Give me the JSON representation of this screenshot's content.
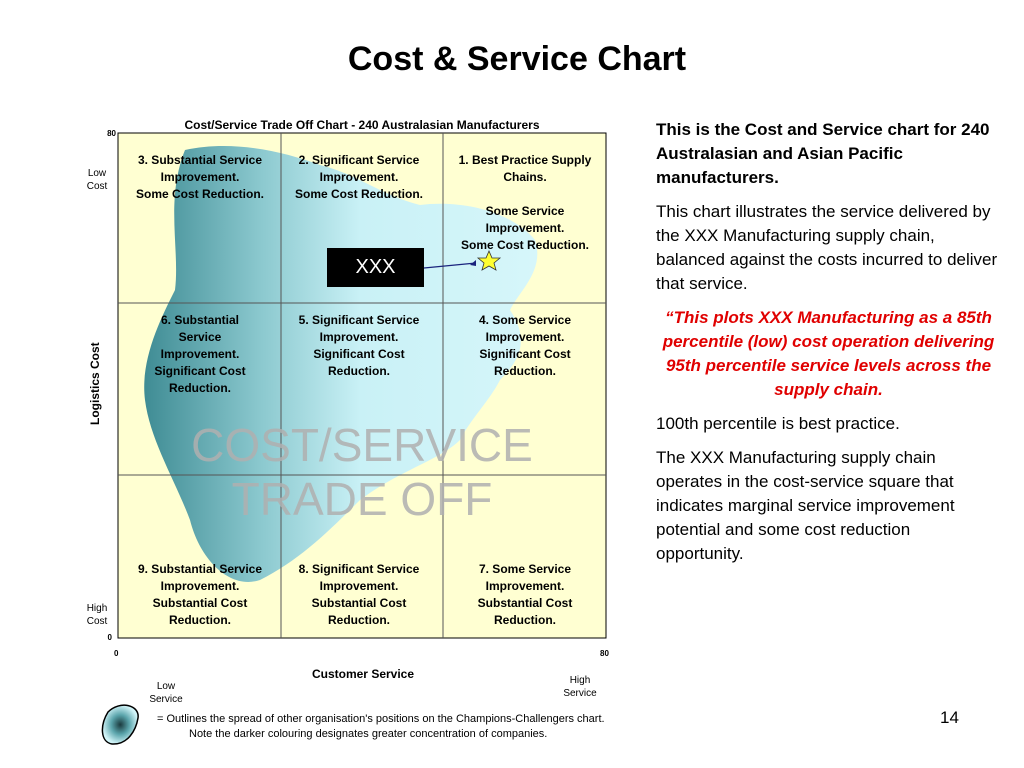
{
  "title": "Cost & Service Chart",
  "chart": {
    "title": "Cost/Service Trade Off Chart - 240 Australasian Manufacturers",
    "y_max": "80",
    "y_min": "0",
    "x_min": "0",
    "x_max": "80",
    "y_label": "Logistics Cost",
    "x_label": "Customer Service",
    "low_cost": [
      "Low",
      "Cost"
    ],
    "high_cost": [
      "High",
      "Cost"
    ],
    "low_service": [
      "Low",
      "Service"
    ],
    "high_service": [
      "High",
      "Service"
    ],
    "cells": [
      [
        [
          "3.  Substantial Service",
          "Improvement.",
          "Some Cost Reduction."
        ]
      ],
      [
        [
          "2.  Significant Service",
          "Improvement.",
          "Some Cost Reduction."
        ]
      ],
      [
        [
          "1.  Best Practice Supply",
          "Chains."
        ],
        [
          "Some Service",
          "Improvement.",
          "Some Cost Reduction."
        ]
      ],
      [
        [
          "6.  Substantial",
          "Service",
          "Improvement.",
          "Significant Cost",
          "Reduction."
        ]
      ],
      [
        [
          "5. Significant Service",
          "Improvement.",
          "Significant Cost",
          "Reduction."
        ]
      ],
      [
        [
          "4.  Some Service",
          "Improvement.",
          "Significant Cost",
          "Reduction."
        ]
      ],
      [
        [
          "9.  Substantial Service",
          "Improvement.",
          "Substantial Cost",
          "Reduction."
        ]
      ],
      [
        [
          "8.  Significant Service",
          "Improvement.",
          "Substantial Cost",
          "Reduction."
        ]
      ],
      [
        [
          "7.  Some Service",
          "Improvement.",
          "Substantial Cost",
          "Reduction."
        ]
      ]
    ],
    "marker_label": "XXX",
    "watermark": [
      "COST/SERVICE",
      "TRADE OFF"
    ]
  },
  "note": [
    "= Outlines the spread of other  organisation's positions on the Champions-Challengers chart.",
    "Note the darker  colouring designates greater concentration of companies."
  ],
  "paragraphs": [
    "This is the Cost and Service chart for 240 Australasian and Asian Pacific manufacturers.",
    "This chart illustrates the service delivered by the XXX Manufacturing supply chain, balanced against the costs incurred to deliver that service.",
    "“This plots XXX Manufacturing as a 85th percentile (low) cost operation delivering 95th percentile service levels across the supply chain.",
    "100th percentile is best practice.",
    "The XXX Manufacturing supply chain operates in the cost-service square that indicates marginal service improvement potential and some cost reduction opportunity."
  ],
  "page_number": "14"
}
